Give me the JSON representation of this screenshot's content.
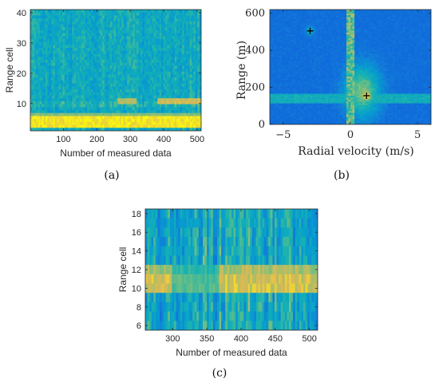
{
  "chart_data": [
    {
      "panel": "(a)",
      "type": "heatmap",
      "xlabel": "Number of measured data",
      "ylabel": "Range cell",
      "xlim": [
        1,
        512
      ],
      "ylim": [
        1,
        41
      ],
      "xticks": [
        100,
        200,
        300,
        400,
        500
      ],
      "yticks": [
        10,
        20,
        30,
        40
      ],
      "colormap": "parula",
      "features": [
        {
          "kind": "strong-band",
          "range_cell": [
            2,
            6
          ],
          "x_from": 1,
          "x_to": 512
        },
        {
          "kind": "faint-band",
          "range_cell": [
            9,
            11
          ],
          "x_from": 1,
          "x_to": 512
        },
        {
          "kind": "target-band",
          "range_cell": [
            9.5,
            12
          ],
          "x_from": 260,
          "x_to": 512
        }
      ]
    },
    {
      "panel": "(b)",
      "type": "heatmap",
      "xlabel": "Radial velocity (m/s)",
      "ylabel": "Range (m)",
      "xlim": [
        -6,
        6
      ],
      "ylim": [
        0,
        620
      ],
      "xticks": [
        -5,
        0,
        5
      ],
      "yticks": [
        0,
        200,
        400,
        600
      ],
      "colormap": "parula",
      "markers": [
        {
          "symbol": "+",
          "x": -3.0,
          "y": 505
        },
        {
          "symbol": "+",
          "x": 1.2,
          "y": 155
        }
      ],
      "features": [
        {
          "kind": "zero-doppler-column",
          "x": 0
        },
        {
          "kind": "horizontal-band",
          "y_from": 110,
          "y_to": 170
        },
        {
          "kind": "target-blob",
          "x": 1.2,
          "y": 155
        }
      ]
    },
    {
      "panel": "(c)",
      "type": "heatmap",
      "xlabel": "Number of measured data",
      "ylabel": "Range cell",
      "xlim": [
        260,
        512
      ],
      "ylim": [
        5.5,
        18.5
      ],
      "xticks": [
        300,
        350,
        400,
        450,
        500
      ],
      "yticks": [
        6,
        8,
        10,
        12,
        14,
        16,
        18
      ],
      "colormap": "parula",
      "features": [
        {
          "kind": "target-band",
          "range_cell": [
            9.5,
            12.5
          ],
          "x_from": 260,
          "x_to": 512
        }
      ]
    }
  ],
  "captions": {
    "a": "(a)",
    "b": "(b)",
    "c": "(c)"
  },
  "colors": {
    "low": "#3e26a8",
    "mid": "#14b5a8",
    "high": "#f9fb0e"
  }
}
